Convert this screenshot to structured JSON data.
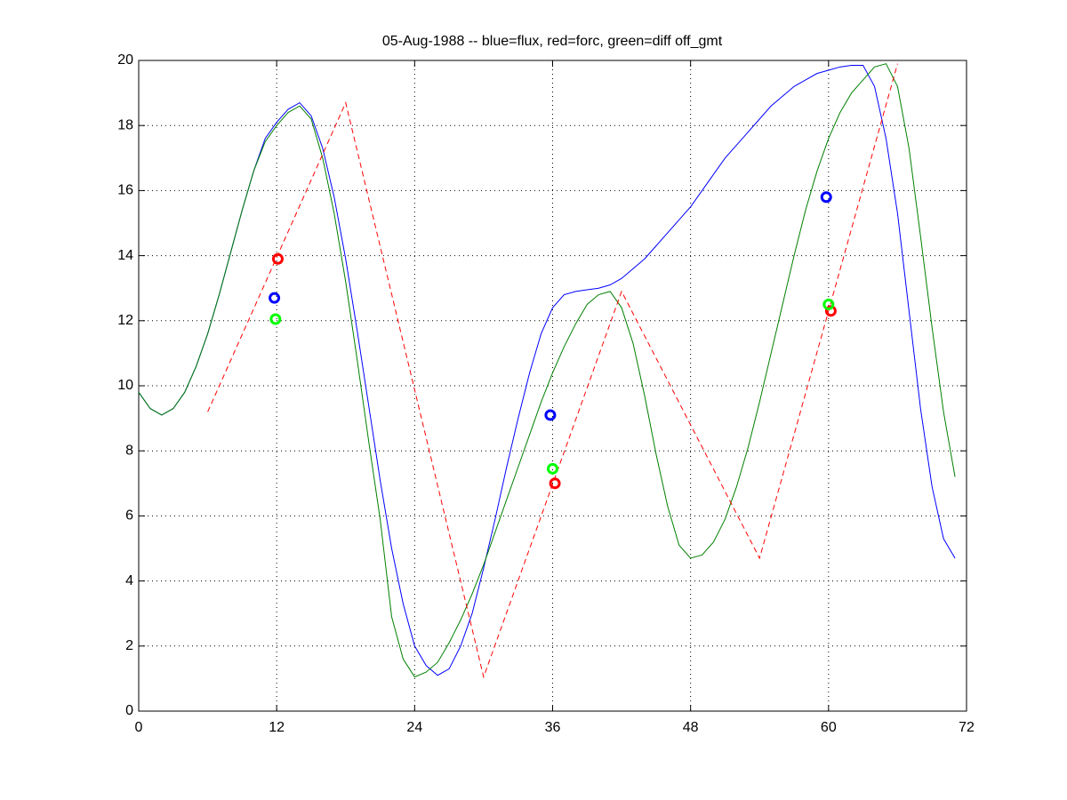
{
  "chart_data": {
    "type": "line",
    "title": "05-Aug-1988 -- blue=flux, red=forc, green=diff off_gmt",
    "x": [
      0,
      1,
      2,
      3,
      4,
      5,
      6,
      7,
      8,
      9,
      10,
      11,
      12,
      13,
      14,
      15,
      16,
      17,
      18,
      19,
      20,
      21,
      22,
      23,
      24,
      25,
      26,
      27,
      28,
      29,
      30,
      31,
      32,
      33,
      34,
      35,
      36,
      37,
      38,
      39,
      40,
      41,
      42,
      43,
      44,
      45,
      46,
      47,
      48,
      49,
      50,
      51,
      52,
      53,
      54,
      55,
      56,
      57,
      58,
      59,
      60,
      61,
      62,
      63,
      64,
      65,
      66,
      67,
      68,
      69,
      70,
      71
    ],
    "series": [
      {
        "color": "#0000ff",
        "values": [
          9.8,
          9.3,
          9.1,
          9.3,
          9.8,
          10.6,
          11.6,
          12.8,
          14.1,
          15.4,
          16.6,
          17.6,
          18.1,
          18.5,
          18.7,
          18.3,
          17.3,
          15.8,
          13.9,
          11.7,
          9.4,
          7.1,
          5.0,
          3.3,
          2.0,
          1.4,
          1.1,
          1.3,
          2.0,
          3.0,
          4.4,
          5.9,
          7.5,
          9.0,
          10.4,
          11.6,
          12.4,
          12.8,
          12.9,
          12.95,
          13.0,
          13.1,
          13.3,
          13.6,
          13.9,
          14.3,
          14.7,
          15.1,
          15.5,
          16.0,
          16.5,
          17.0,
          17.4,
          17.8,
          18.2,
          18.6,
          18.9,
          19.2,
          19.4,
          19.6,
          19.7,
          19.8,
          19.85,
          19.85,
          19.2,
          17.6,
          15.3,
          12.3,
          9.3,
          6.9,
          5.3,
          4.7
        ]
      },
      {
        "color": "#008000",
        "values": [
          9.8,
          9.3,
          9.1,
          9.3,
          9.8,
          10.6,
          11.6,
          12.8,
          14.1,
          15.4,
          16.6,
          17.5,
          18.0,
          18.4,
          18.6,
          18.2,
          17.0,
          15.3,
          13.2,
          10.8,
          8.3,
          5.9,
          2.9,
          1.6,
          1.05,
          1.2,
          1.5,
          2.1,
          2.8,
          3.6,
          4.5,
          5.5,
          6.5,
          7.5,
          8.5,
          9.5,
          10.4,
          11.2,
          11.9,
          12.5,
          12.8,
          12.9,
          12.4,
          11.3,
          9.7,
          7.9,
          6.3,
          5.1,
          4.7,
          4.8,
          5.2,
          5.9,
          6.9,
          8.1,
          9.5,
          11.0,
          12.5,
          14.0,
          15.4,
          16.6,
          17.6,
          18.4,
          19.0,
          19.4,
          19.8,
          19.9,
          19.2,
          17.3,
          14.6,
          11.8,
          9.2,
          7.2
        ]
      },
      {
        "color": "#ff0000",
        "dash": true,
        "x": [
          6,
          18,
          30,
          42,
          54,
          66
        ],
        "values": [
          9.2,
          18.7,
          1.05,
          12.9,
          4.7,
          19.9
        ]
      },
      {
        "color": "#0000ff",
        "marker": "o",
        "x": [
          11.8,
          35.8,
          59.8
        ],
        "values": [
          12.7,
          9.1,
          15.8
        ]
      },
      {
        "color": "#ff0000",
        "marker": "o",
        "x": [
          12.1,
          36.2,
          60.2
        ],
        "values": [
          13.9,
          7.0,
          12.3
        ]
      },
      {
        "color": "#00ff00",
        "marker": "o",
        "x": [
          11.9,
          36.0,
          60.0
        ],
        "values": [
          12.05,
          7.45,
          12.5
        ]
      }
    ],
    "xlim": [
      0,
      72
    ],
    "xticks": [
      0,
      12,
      24,
      36,
      48,
      60,
      72
    ],
    "ylim": [
      0,
      20
    ],
    "yticks": [
      0,
      2,
      4,
      6,
      8,
      10,
      12,
      14,
      16,
      18,
      20
    ],
    "grid": true
  }
}
